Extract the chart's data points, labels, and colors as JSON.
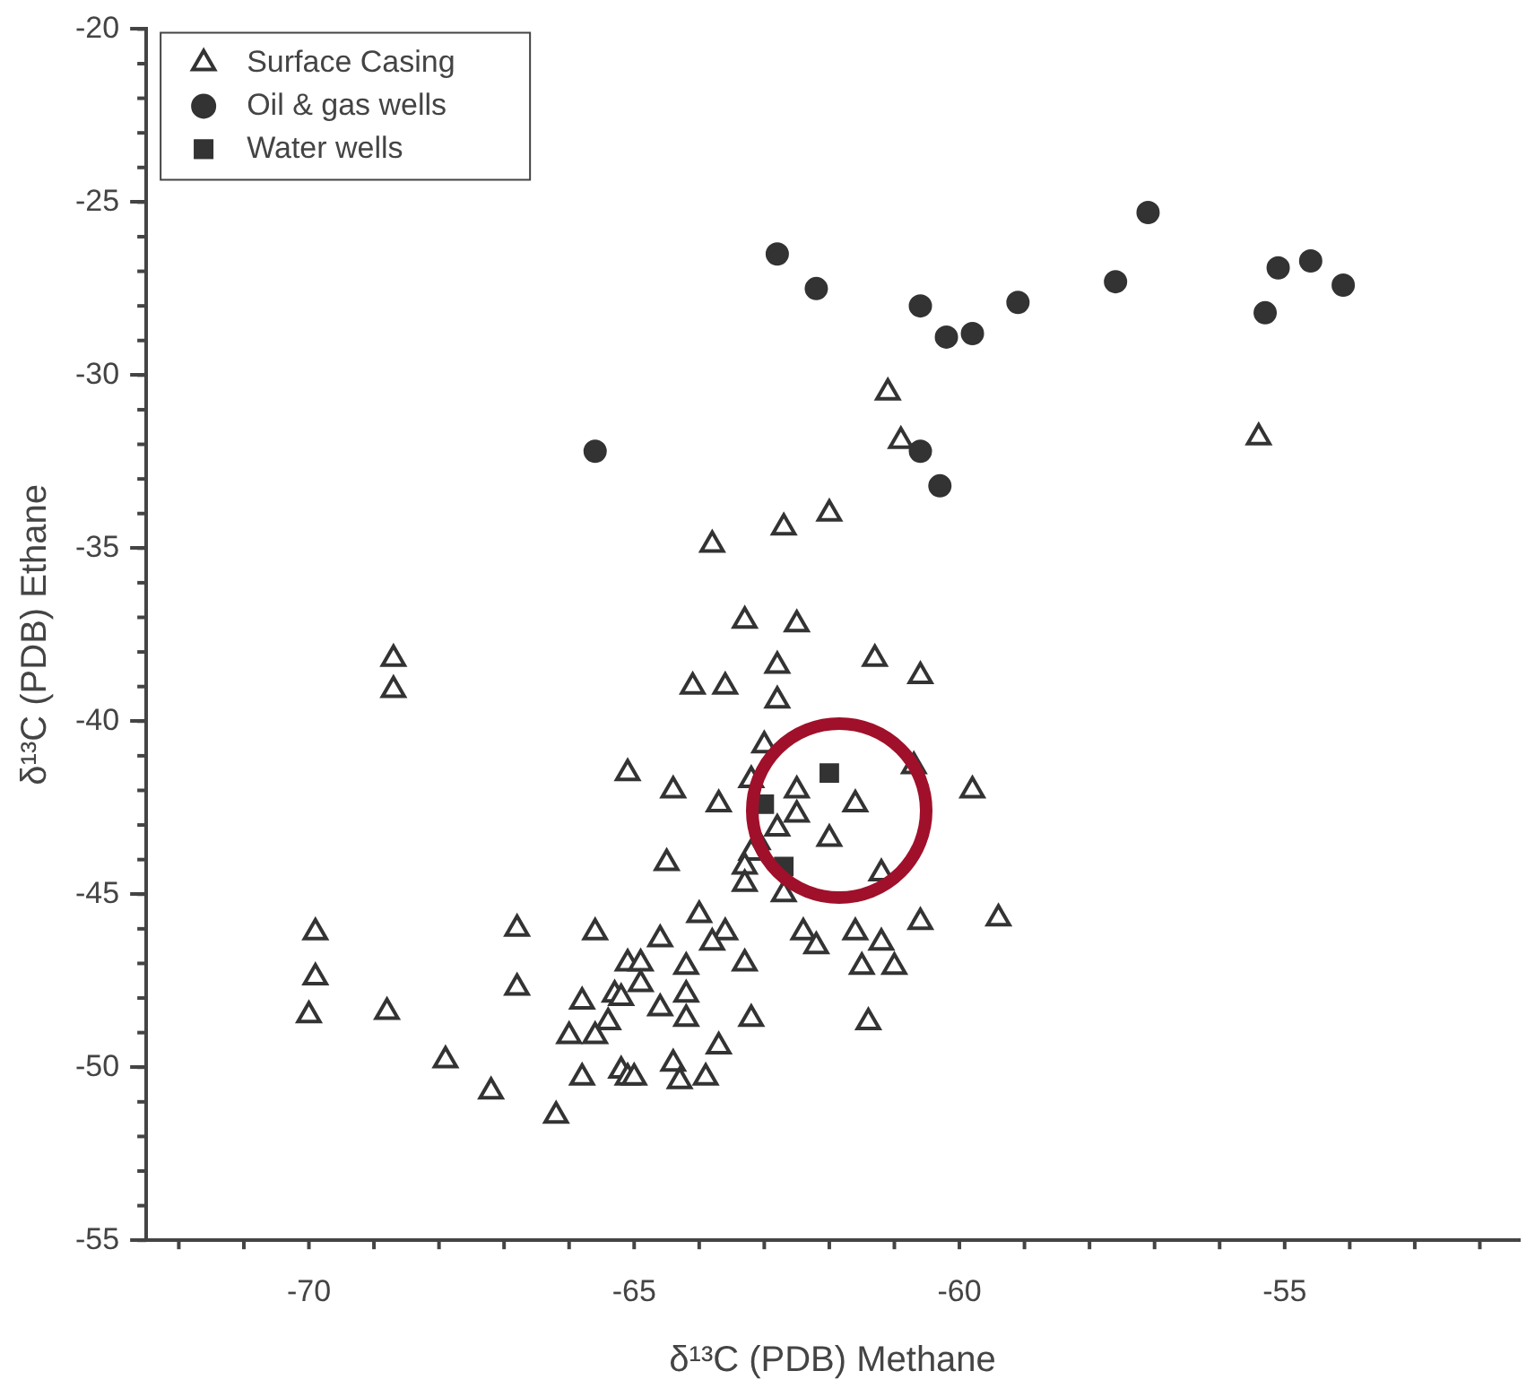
{
  "chart_data": {
    "type": "scatter",
    "xlabel": "δ¹³C (PDB) Methane",
    "ylabel": "δ¹³C (PDB) Ethane",
    "xlim": [
      -72.5,
      -51.4
    ],
    "xticks": [
      -70,
      -65,
      -60,
      -55
    ],
    "ylim": [
      -55,
      -20
    ],
    "yticks": [
      -55,
      -50,
      -45,
      -40,
      -35,
      -30,
      -25,
      -20
    ],
    "grid": false,
    "legend": "top left",
    "series": [
      {
        "name": "Surface Casing",
        "color": "#333333",
        "marker": "triangle",
        "x": [
          -61.1,
          -60.9,
          -55.4,
          -63.8,
          -62.7,
          -62.0,
          -68.7,
          -68.7,
          -65.1,
          -69.9,
          -69.9,
          -70.0,
          -68.8,
          -66.8,
          -65.6,
          -66.8,
          -67.9,
          -67.2,
          -66.2,
          -65.8,
          -65.3,
          -65.4,
          -66.0,
          -65.6,
          -65.8,
          -65.2,
          -65.1,
          -65.1,
          -63.3,
          -62.5,
          -64.1,
          -63.6,
          -62.8,
          -62.8,
          -61.3,
          -60.6,
          -63.0,
          -64.4,
          -63.7,
          -63.2,
          -62.5,
          -61.6,
          -60.7,
          -59.8,
          -62.5,
          -62.8,
          -62.0,
          -63.1,
          -64.5,
          -63.2,
          -63.3,
          -61.2,
          -63.3,
          -62.7,
          -64.0,
          -63.6,
          -64.6,
          -62.4,
          -62.2,
          -61.6,
          -61.2,
          -61.5,
          -61.0,
          -60.6,
          -59.4,
          -63.8,
          -63.3,
          -64.9,
          -64.2,
          -64.9,
          -65.2,
          -64.2,
          -64.6,
          -64.2,
          -63.2,
          -61.4,
          -63.7,
          -64.4,
          -63.9,
          -65.0,
          -64.3
        ],
        "values": [
          -30.5,
          -31.9,
          -31.8,
          -34.9,
          -34.4,
          -34.0,
          -38.2,
          -39.1,
          -41.5,
          -46.1,
          -47.4,
          -48.5,
          -48.4,
          -46.0,
          -46.1,
          -47.7,
          -49.8,
          -50.7,
          -51.4,
          -48.1,
          -47.9,
          -48.7,
          -49.1,
          -49.1,
          -50.3,
          -50.1,
          -50.3,
          -47.0,
          -37.1,
          -37.2,
          -39.0,
          -39.0,
          -38.4,
          -39.4,
          -38.2,
          -38.7,
          -40.7,
          -42.0,
          -42.4,
          -41.7,
          -42.0,
          -42.4,
          -41.3,
          -42.0,
          -42.7,
          -43.1,
          -43.4,
          -43.5,
          -44.1,
          -43.8,
          -44.2,
          -44.4,
          -44.7,
          -45.0,
          -45.6,
          -46.1,
          -46.3,
          -46.1,
          -46.5,
          -46.1,
          -46.4,
          -47.1,
          -47.1,
          -45.8,
          -45.7,
          -46.4,
          -47.0,
          -47.0,
          -47.1,
          -47.6,
          -48.0,
          -47.9,
          -48.3,
          -48.6,
          -48.6,
          -48.7,
          -49.4,
          -49.9,
          -50.3,
          -50.3,
          -50.4
        ]
      },
      {
        "name": "Oil & gas wells",
        "color": "#333333",
        "marker": "circle",
        "x": [
          -62.8,
          -62.2,
          -60.6,
          -60.2,
          -59.8,
          -59.1,
          -57.6,
          -57.1,
          -55.1,
          -54.6,
          -54.1,
          -55.3,
          -65.6,
          -60.6,
          -60.3
        ],
        "values": [
          -26.5,
          -27.5,
          -28.0,
          -28.9,
          -28.8,
          -27.9,
          -27.3,
          -25.3,
          -26.9,
          -26.7,
          -27.4,
          -28.2,
          -32.2,
          -32.2,
          -33.2
        ]
      },
      {
        "name": "Water wells",
        "color": "#333333",
        "marker": "square",
        "x": [
          -62.0,
          -63.0,
          -62.7
        ],
        "values": [
          -41.5,
          -42.4,
          -44.2
        ]
      }
    ]
  }
}
